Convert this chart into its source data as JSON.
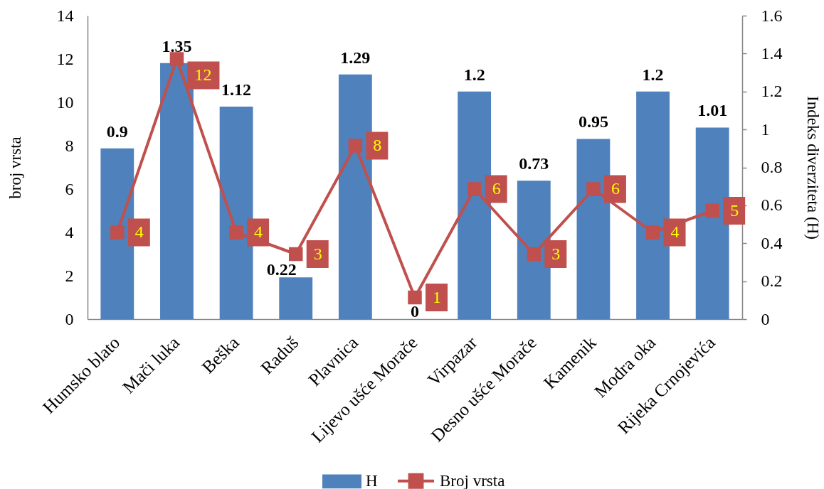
{
  "chart_data": {
    "type": "bar",
    "categories": [
      "Humsko blato",
      "Mači luka",
      "Beška",
      "Raduš",
      "Plavnica",
      "Lijevo ušće Morače",
      "Virpazar",
      "Desno ušće Morače",
      "Kamenik",
      "Modra oka",
      "Rijeka Crnojevića"
    ],
    "series": [
      {
        "name": "H",
        "axis": "y2",
        "color": "#4f81bd",
        "values": [
          0.9,
          1.35,
          1.12,
          0.22,
          1.29,
          0,
          1.2,
          0.73,
          0.95,
          1.2,
          1.01
        ]
      },
      {
        "name": "Broj vrsta",
        "type": "line",
        "color": "#c0504d",
        "marker": "square",
        "values": [
          4,
          12,
          4,
          3,
          8,
          1,
          6,
          3,
          6,
          4,
          5
        ]
      }
    ],
    "ylabel": "broj vrsta",
    "y2label": "Indeks diverziteta (H)",
    "ylim": [
      0,
      14
    ],
    "yticks": [
      0,
      2,
      4,
      6,
      8,
      10,
      12,
      14
    ],
    "y2lim": [
      0,
      1.6
    ],
    "y2ticks": [
      0,
      0.2,
      0.4,
      0.6,
      0.8,
      1,
      1.2,
      1.4,
      1.6
    ],
    "data_labels": true,
    "legend": "bottom"
  }
}
